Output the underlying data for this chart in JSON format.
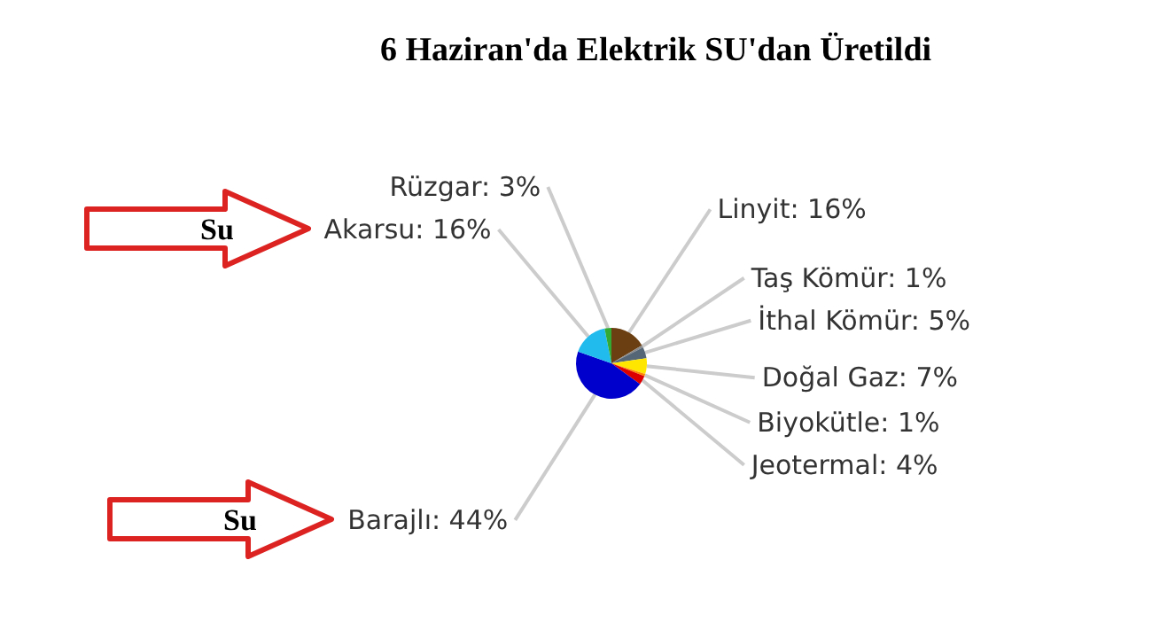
{
  "chart_data": {
    "type": "pie",
    "title": "6 Haziran'da Elektrik SU'dan Üretildi",
    "categories": [
      "Linyit",
      "Taş Kömür",
      "İthal Kömür",
      "Doğal Gaz",
      "Biyokütle",
      "Jeotermal",
      "Barajlı",
      "Akarsu",
      "Rüzgar"
    ],
    "values": [
      16,
      1,
      5,
      7,
      1,
      4,
      44,
      16,
      3
    ],
    "value_labels": [
      "16%",
      "1%",
      "5%",
      "7%",
      "1%",
      "4%",
      "44%",
      "16%",
      "3%"
    ],
    "colors": [
      "#6b3f12",
      "#8a8a8a",
      "#556677",
      "#ffe600",
      "#ff8800",
      "#dd0000",
      "#0000cc",
      "#22bbee",
      "#33aa33"
    ],
    "annotations": [
      {
        "text": "Su",
        "x": "Akarsu"
      },
      {
        "text": "Su",
        "x": "Barajlı"
      }
    ]
  }
}
